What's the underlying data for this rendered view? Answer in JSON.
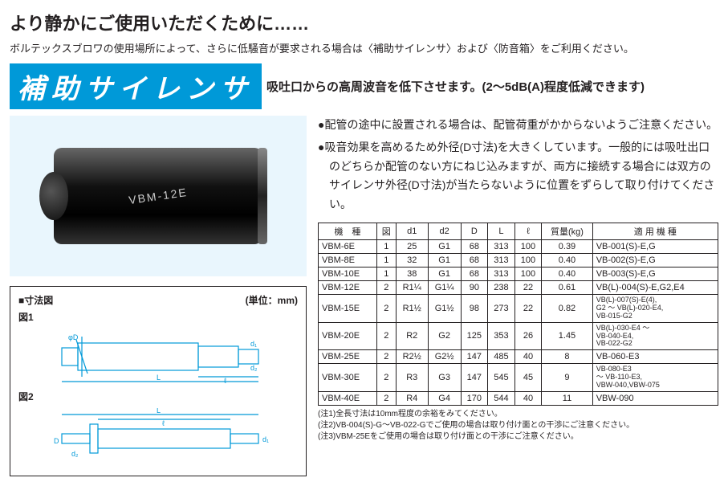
{
  "title": "より静かにご使用いただくために……",
  "lead": "ボルテックスブロワの使用場所によって、さらに低騒音が要求される場合は〈補助サイレンサ〉および〈防音箱〉をご利用ください。",
  "badge": {
    "text": "補助サイレンサ",
    "bg": "#0099d8"
  },
  "subhead": "吸吐口からの高周波音を低下させます。(2〜5dB(A)程度低減できます)",
  "photo_label": "VBM-12E",
  "bullets": [
    "●配管の途中に設置される場合は、配管荷重がかからないようご注意ください。",
    "●吸音効果を高めるため外径(D寸法)を大きくしています。一般的には吸吐出口のどちらか配管のない方にねじ込みますが、両方に接続する場合には双方のサイレンサ外径(D寸法)が当たらないように位置をずらして取り付けてください。"
  ],
  "dim": {
    "header": "■寸法図",
    "unit": "(単位：mm)",
    "fig1": "図1",
    "fig2": "図2"
  },
  "table": {
    "columns": [
      "機　種",
      "図",
      "d1",
      "d2",
      "D",
      "L",
      "ℓ",
      "質量(kg)",
      "適 用 機 種"
    ],
    "rows": [
      [
        "VBM-6E",
        "1",
        "25",
        "G1",
        "68",
        "313",
        "100",
        "0.39",
        "VB-001(S)-E,G"
      ],
      [
        "VBM-8E",
        "1",
        "32",
        "G1",
        "68",
        "313",
        "100",
        "0.40",
        "VB-002(S)-E,G"
      ],
      [
        "VBM-10E",
        "1",
        "38",
        "G1",
        "68",
        "313",
        "100",
        "0.40",
        "VB-003(S)-E,G"
      ],
      [
        "VBM-12E",
        "2",
        "R1¼",
        "G1¼",
        "90",
        "238",
        "22",
        "0.61",
        "VB(L)-004(S)-E,G2,E4"
      ],
      [
        "VBM-15E",
        "2",
        "R1½",
        "G1½",
        "98",
        "273",
        "22",
        "0.82",
        "VB(L)-007(S)-E(4),\nG2 〜 VB(L)-020-E4,\nVB-015-G2"
      ],
      [
        "VBM-20E",
        "2",
        "R2",
        "G2",
        "125",
        "353",
        "26",
        "1.45",
        "VB(L)-030-E4 〜\nVB-040-E4,\nVB-022-G2"
      ],
      [
        "VBM-25E",
        "2",
        "R2½",
        "G2½",
        "147",
        "485",
        "40",
        "8",
        "VB-060-E3"
      ],
      [
        "VBM-30E",
        "2",
        "R3",
        "G3",
        "147",
        "545",
        "45",
        "9",
        "VB-080-E3\n〜 VB-110-E3,\nVBW-040,VBW-075"
      ],
      [
        "VBM-40E",
        "2",
        "R4",
        "G4",
        "170",
        "544",
        "40",
        "11",
        "VBW-090"
      ]
    ]
  },
  "notes": [
    "(注1)全長寸法は10mm程度の余裕をみてください。",
    "(注2)VB-004(S)-G〜VB-022-Gでご使用の場合は取り付け面との干渉にご注意ください。",
    "(注3)VBM-25Eをご使用の場合は取り付け面との干渉にご注意ください。"
  ],
  "colors": {
    "accent": "#0099d8",
    "photo_bg": "#e9f6fd"
  }
}
